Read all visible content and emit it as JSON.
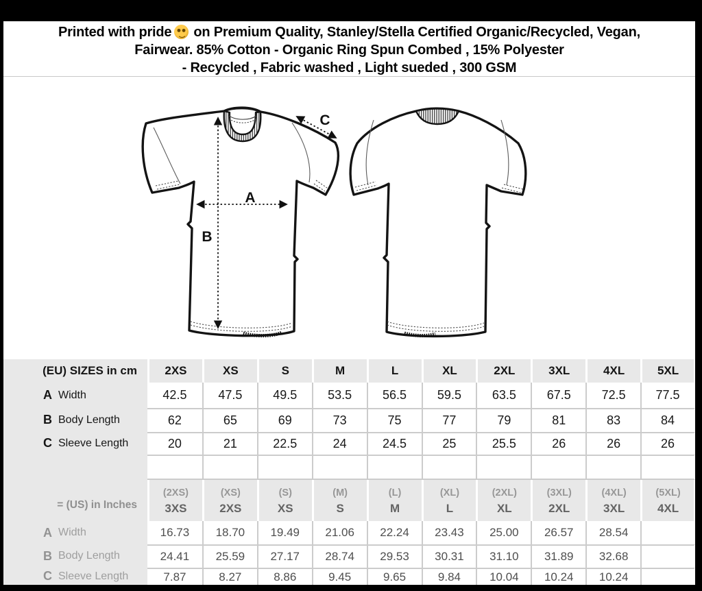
{
  "header": {
    "line1_before_emoji": "Printed with pride",
    "emoji_icon": "smiling-face-with-smiling-eyes",
    "line1_after_emoji": "on Premium Quality, Stanley/Stella Certified Organic/Recycled, Vegan,",
    "line2": "Fairwear. 85% Cotton - Organic Ring Spun Combed , 15% Polyester",
    "line3": "- Recycled , Fabric washed , Light sueded , 300 GSM"
  },
  "diagram": {
    "measure_labels": {
      "a": "A",
      "b": "B",
      "c": "C"
    },
    "views": [
      "front",
      "back"
    ]
  },
  "size_chart": {
    "eu": {
      "title": "(EU) SIZES in cm",
      "sizes": [
        "2XS",
        "XS",
        "S",
        "M",
        "L",
        "XL",
        "2XL",
        "3XL",
        "4XL",
        "5XL"
      ],
      "rows": [
        {
          "key": "A",
          "label": "Width",
          "values": [
            "42.5",
            "47.5",
            "49.5",
            "53.5",
            "56.5",
            "59.5",
            "63.5",
            "67.5",
            "72.5",
            "77.5"
          ]
        },
        {
          "key": "B",
          "label": "Body Length",
          "values": [
            "62",
            "65",
            "69",
            "73",
            "75",
            "77",
            "79",
            "81",
            "83",
            "84"
          ]
        },
        {
          "key": "C",
          "label": "Sleeve Length",
          "values": [
            "20",
            "21",
            "22.5",
            "24",
            "24.5",
            "25",
            "25.5",
            "26",
            "26",
            "26"
          ]
        }
      ]
    },
    "us": {
      "title": "= (US) in Inches",
      "eu_equivalents": [
        "(2XS)",
        "(XS)",
        "(S)",
        "(M)",
        "(L)",
        "(XL)",
        "(2XL)",
        "(3XL)",
        "(4XL)",
        "(5XL)"
      ],
      "sizes": [
        "3XS",
        "2XS",
        "XS",
        "S",
        "M",
        "L",
        "XL",
        "2XL",
        "3XL",
        "4XL"
      ],
      "rows": [
        {
          "key": "A",
          "label": "Width",
          "values": [
            "16.73",
            "18.70",
            "19.49",
            "21.06",
            "22.24",
            "23.43",
            "25.00",
            "26.57",
            "28.54",
            ""
          ]
        },
        {
          "key": "B",
          "label": "Body Length",
          "values": [
            "24.41",
            "25.59",
            "27.17",
            "28.74",
            "29.53",
            "30.31",
            "31.10",
            "31.89",
            "32.68",
            ""
          ]
        },
        {
          "key": "C",
          "label": "Sleeve Length",
          "values": [
            "7.87",
            "8.27",
            "8.86",
            "9.45",
            "9.65",
            "9.84",
            "10.04",
            "10.24",
            "10.24",
            ""
          ]
        }
      ]
    }
  },
  "colors": {
    "frame_black": "#000000",
    "table_header_bg": "#e8e8e8",
    "grid_line": "#cccccc",
    "eu_text": "#151515",
    "us_label_gray": "#8f8f8f",
    "us_value_gray": "#4e4e4e",
    "emoji_yellow": "#ffcb4c"
  }
}
